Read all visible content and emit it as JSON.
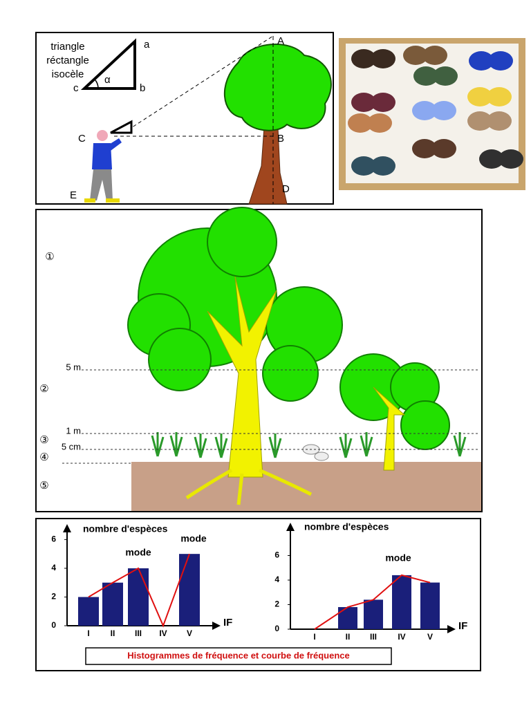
{
  "triangle_diagram": {
    "title_lines": [
      "triangle",
      "réctangle",
      "isocèle"
    ],
    "small_vertices": [
      "a",
      "b",
      "c"
    ],
    "angle": "α",
    "points": [
      "A",
      "B",
      "C",
      "D",
      "E"
    ]
  },
  "strata_diagram": {
    "layers": [
      "①",
      "②",
      "③",
      "④",
      "⑤"
    ],
    "heights": [
      "5 m",
      "1 m",
      "5 cm"
    ]
  },
  "chart_data": [
    {
      "type": "bar",
      "y_label": "nombre d'espèces",
      "x_label": "IF",
      "categories": [
        "I",
        "II",
        "III",
        "IV",
        "V"
      ],
      "values": [
        2,
        3,
        4,
        0,
        5
      ],
      "color": "#1a1f7a",
      "curve_color": "#e01010",
      "ylim": [
        0,
        6.5
      ],
      "yticks": [
        0,
        2,
        4,
        6
      ],
      "annotations": [
        "mode",
        "mode"
      ]
    },
    {
      "type": "bar",
      "y_label": "nombre d'espèces",
      "x_label": "IF",
      "categories": [
        "I",
        "II",
        "III",
        "IV",
        "V"
      ],
      "values": [
        0,
        1.8,
        2.4,
        4.4,
        3.8
      ],
      "color": "#1a1f7a",
      "curve_color": "#e01010",
      "ylim": [
        0,
        8
      ],
      "yticks": [
        0,
        2,
        4,
        6
      ],
      "annotations": [
        "mode"
      ]
    }
  ],
  "caption": "Histogrammes de fréquence et courbe de fréquence"
}
